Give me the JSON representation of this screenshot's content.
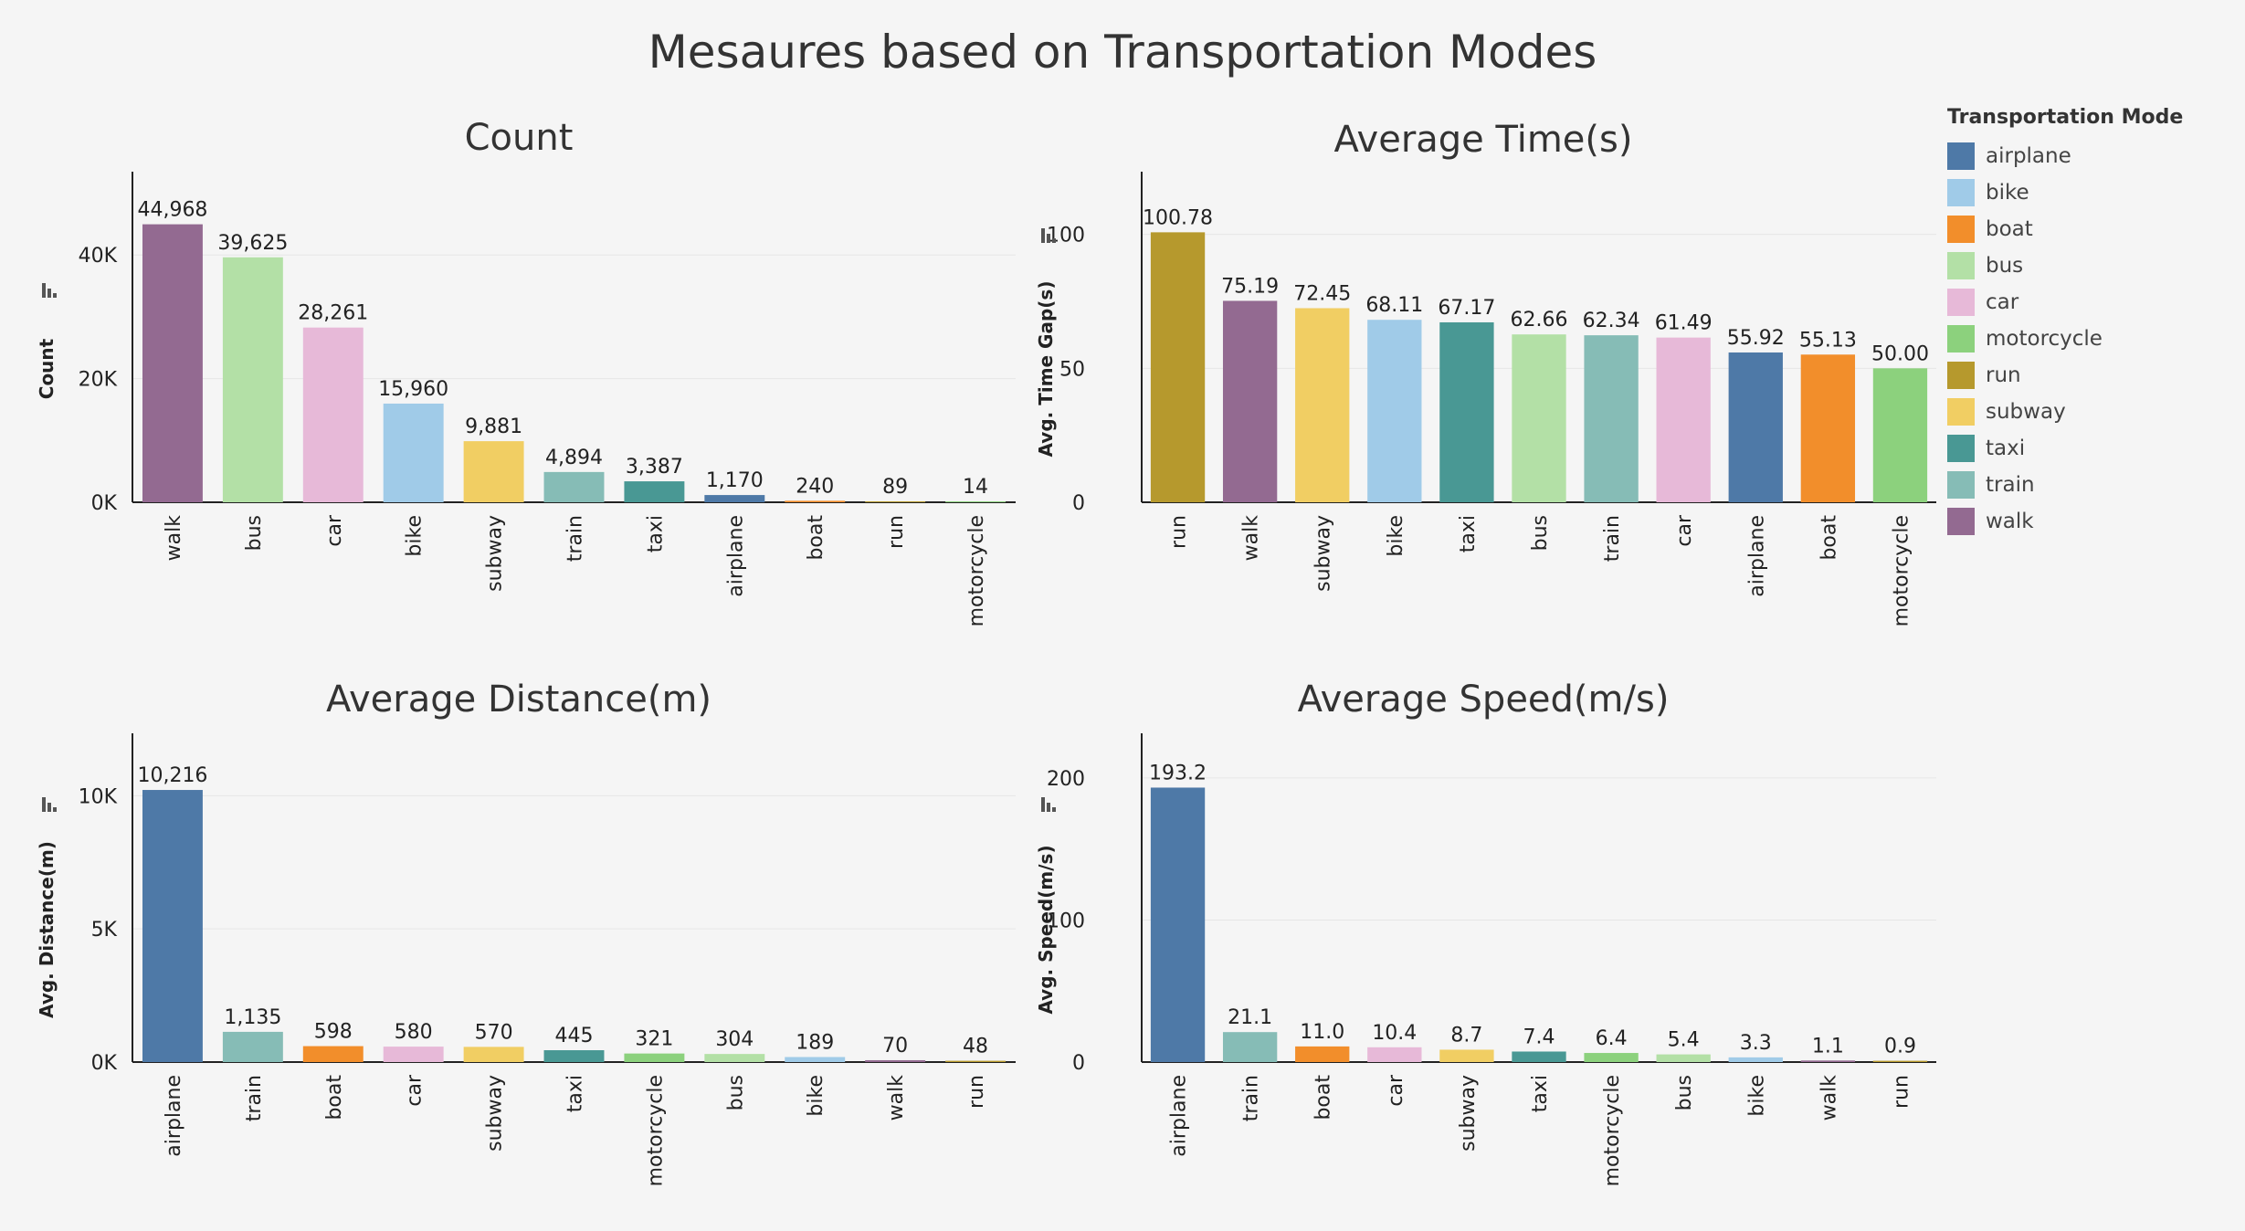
{
  "title": "Mesaures based on Transportation Modes",
  "legend": {
    "title": "Transportation Mode",
    "items": [
      {
        "label": "airplane",
        "color": "#4e79a7"
      },
      {
        "label": "bike",
        "color": "#a0cbe8"
      },
      {
        "label": "boat",
        "color": "#f28e2b"
      },
      {
        "label": "bus",
        "color": "#b3e0a6"
      },
      {
        "label": "car",
        "color": "#e7b9d8"
      },
      {
        "label": "motorcycle",
        "color": "#8cd17d"
      },
      {
        "label": "run",
        "color": "#b6992d"
      },
      {
        "label": "subway",
        "color": "#f1ce63"
      },
      {
        "label": "taxi",
        "color": "#499894"
      },
      {
        "label": "train",
        "color": "#86bcb6"
      },
      {
        "label": "walk",
        "color": "#936a91"
      }
    ]
  },
  "chart_data": [
    {
      "type": "bar",
      "title": "Count",
      "ylabel": "Count",
      "ylim": [
        0,
        52000
      ],
      "yticks": [
        0,
        20000,
        40000
      ],
      "yticklabels": [
        "0K",
        "20K",
        "40K"
      ],
      "categories": [
        "walk",
        "bus",
        "car",
        "bike",
        "subway",
        "train",
        "taxi",
        "airplane",
        "boat",
        "run",
        "motorcycle"
      ],
      "values": [
        44968,
        39625,
        28261,
        15960,
        9881,
        4894,
        3387,
        1170,
        240,
        89,
        14
      ],
      "value_labels": [
        "44,968",
        "39,625",
        "28,261",
        "15,960",
        "9,881",
        "4,894",
        "3,387",
        "1,170",
        "240",
        "89",
        "14"
      ]
    },
    {
      "type": "bar",
      "title": "Average Time(s)",
      "ylabel": "Avg. Time Gap(s)",
      "ylim": [
        0,
        120
      ],
      "yticks": [
        0,
        50,
        100
      ],
      "yticklabels": [
        "0",
        "50",
        "100"
      ],
      "categories": [
        "run",
        "walk",
        "subway",
        "bike",
        "taxi",
        "bus",
        "train",
        "car",
        "airplane",
        "boat",
        "motorcycle"
      ],
      "values": [
        100.78,
        75.19,
        72.45,
        68.11,
        67.17,
        62.66,
        62.34,
        61.49,
        55.92,
        55.13,
        50.0
      ],
      "value_labels": [
        "100.78",
        "75.19",
        "72.45",
        "68.11",
        "67.17",
        "62.66",
        "62.34",
        "61.49",
        "55.92",
        "55.13",
        "50.00"
      ]
    },
    {
      "type": "bar",
      "title": "Average Distance(m)",
      "ylabel": "Avg. Distance(m)",
      "ylim": [
        0,
        12000
      ],
      "yticks": [
        0,
        5000,
        10000
      ],
      "yticklabels": [
        "0K",
        "5K",
        "10K"
      ],
      "categories": [
        "airplane",
        "train",
        "boat",
        "car",
        "subway",
        "taxi",
        "motorcycle",
        "bus",
        "bike",
        "walk",
        "run"
      ],
      "values": [
        10216,
        1135,
        598,
        580,
        570,
        445,
        321,
        304,
        189,
        70,
        48
      ],
      "value_labels": [
        "10,216",
        "1,135",
        "598",
        "580",
        "570",
        "445",
        "321",
        "304",
        "189",
        "70",
        "48"
      ]
    },
    {
      "type": "bar",
      "title": "Average Speed(m/s)",
      "ylabel": "Avg. Speed(m/s)",
      "ylim": [
        0,
        225
      ],
      "yticks": [
        0,
        100,
        200
      ],
      "yticklabels": [
        "0",
        "100",
        "200"
      ],
      "categories": [
        "airplane",
        "train",
        "boat",
        "car",
        "subway",
        "taxi",
        "motorcycle",
        "bus",
        "bike",
        "walk",
        "run"
      ],
      "values": [
        193.2,
        21.1,
        11.0,
        10.4,
        8.7,
        7.4,
        6.4,
        5.4,
        3.3,
        1.1,
        0.9
      ],
      "value_labels": [
        "193.2",
        "21.1",
        "11.0",
        "10.4",
        "8.7",
        "7.4",
        "6.4",
        "5.4",
        "3.3",
        "1.1",
        "0.9"
      ]
    }
  ]
}
